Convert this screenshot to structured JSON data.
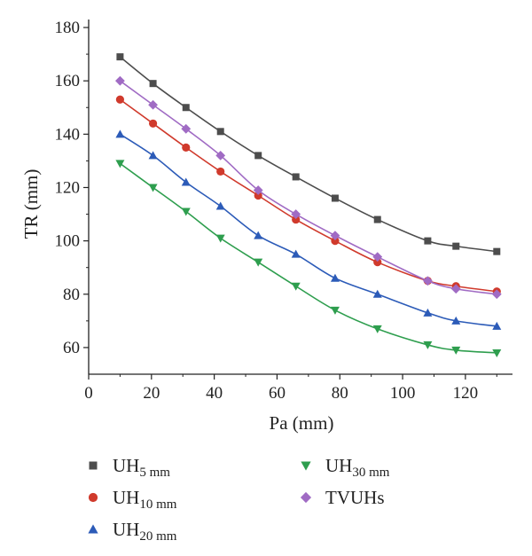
{
  "chart_data": {
    "type": "line",
    "title": "",
    "xlabel": "Pa (mm)",
    "ylabel": "TR (mm)",
    "xlim": [
      0,
      135
    ],
    "ylim": [
      50,
      183
    ],
    "xticks": [
      0,
      20,
      40,
      60,
      80,
      100,
      120
    ],
    "yticks": [
      60,
      80,
      100,
      120,
      140,
      160,
      180
    ],
    "grid": false,
    "legend_position": "bottom",
    "x": [
      10,
      20.5,
      31,
      42,
      54,
      66,
      78.5,
      92,
      108,
      117,
      130
    ],
    "series": [
      {
        "name": "UH",
        "sub": "5 mm",
        "marker": "square",
        "color": "#4d4d4d",
        "values": [
          169,
          159,
          150,
          141,
          132,
          124,
          116,
          108,
          100,
          98,
          96
        ]
      },
      {
        "name": "UH",
        "sub": "10 mm",
        "marker": "circle",
        "color": "#d03a2c",
        "values": [
          153,
          144,
          135,
          126,
          117,
          108,
          100,
          92,
          85,
          83,
          81
        ]
      },
      {
        "name": "UH",
        "sub": "20 mm",
        "marker": "triangle-up",
        "color": "#2c5bb8",
        "values": [
          140,
          132,
          122,
          113,
          102,
          95,
          86,
          80,
          73,
          70,
          68
        ]
      },
      {
        "name": "UH",
        "sub": "30 mm",
        "marker": "triangle-down",
        "color": "#2e9e4e",
        "values": [
          129,
          120,
          111,
          101,
          92,
          83,
          74,
          67,
          61,
          59,
          58
        ]
      },
      {
        "name": "TVUHs",
        "sub": "",
        "marker": "diamond",
        "color": "#a06bc4",
        "values": [
          160,
          151,
          142,
          132,
          119,
          110,
          102,
          94,
          85,
          82,
          80
        ]
      }
    ]
  }
}
